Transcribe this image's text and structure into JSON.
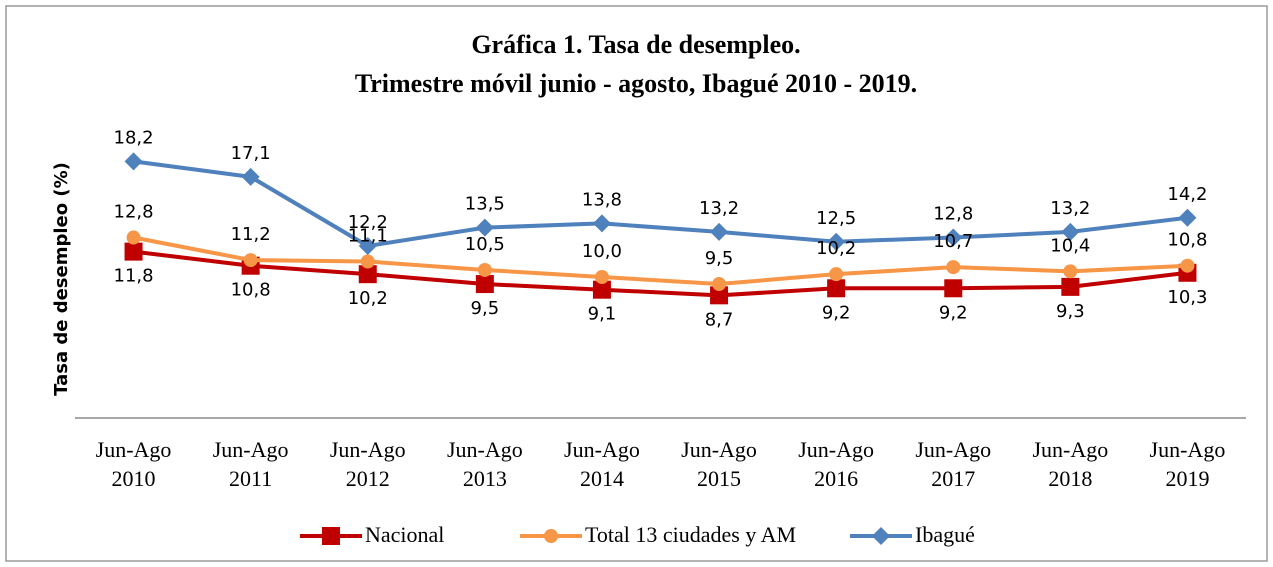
{
  "chart_data": {
    "type": "line",
    "title": "Gráfica 1. Tasa de desempleo.",
    "subtitle": "Trimestre móvil junio - agosto, Ibagué 2010 - 2019.",
    "y_label": "Tasa de desempleo (%)",
    "categories": [
      "Jun-Ago 2010",
      "Jun-Ago 2011",
      "Jun-Ago 2012",
      "Jun-Ago 2013",
      "Jun-Ago 2014",
      "Jun-Ago 2015",
      "Jun-Ago 2016",
      "Jun-Ago 2017",
      "Jun-Ago 2018",
      "Jun-Ago 2019"
    ],
    "ylim": [
      0,
      20
    ],
    "legend": "bottom",
    "series": [
      {
        "name": "Nacional",
        "color": "#c00000",
        "marker": "square",
        "values": [
          11.8,
          10.8,
          10.2,
          9.5,
          9.1,
          8.7,
          9.2,
          9.2,
          9.3,
          10.3
        ],
        "value_labels": [
          "11,8",
          "10,8",
          "10,2",
          "9,5",
          "9,1",
          "8,7",
          "9,2",
          "9,2",
          "9,3",
          "10,3"
        ]
      },
      {
        "name": "Total 13 ciudades y AM",
        "color": "#f79646",
        "marker": "circle",
        "values": [
          12.8,
          11.2,
          11.1,
          10.5,
          10.0,
          9.5,
          10.2,
          10.7,
          10.4,
          10.8
        ],
        "value_labels": [
          "12,8",
          "11,2",
          "11,1",
          "10,5",
          "10,0",
          "9,5",
          "10,2",
          "10,7",
          "10,4",
          "10,8"
        ]
      },
      {
        "name": "Ibagué",
        "color": "#4f81bd",
        "marker": "diamond",
        "values": [
          18.2,
          17.1,
          12.2,
          13.5,
          13.8,
          13.2,
          12.5,
          12.8,
          13.2,
          14.2
        ],
        "value_labels": [
          "18,2",
          "17,1",
          "12,2",
          "13,5",
          "13,8",
          "13,2",
          "12,5",
          "12,8",
          "13,2",
          "14,2"
        ]
      }
    ]
  }
}
